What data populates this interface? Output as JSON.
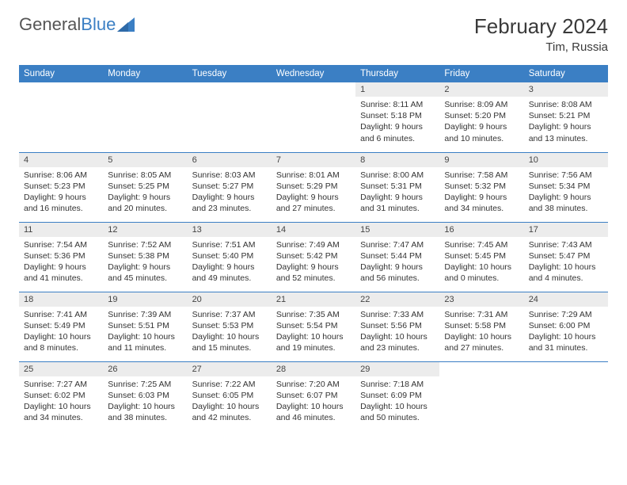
{
  "brand": {
    "part1": "General",
    "part2": "Blue"
  },
  "title": "February 2024",
  "location": "Tim, Russia",
  "colors": {
    "header_bg": "#3b7fc4",
    "header_text": "#ffffff",
    "daynum_bg": "#ececec",
    "border": "#3b7fc4",
    "text": "#333333",
    "background": "#ffffff"
  },
  "typography": {
    "title_fontsize": 26,
    "location_fontsize": 15,
    "weekday_fontsize": 11.5,
    "cell_fontsize": 10.5
  },
  "weekdays": [
    "Sunday",
    "Monday",
    "Tuesday",
    "Wednesday",
    "Thursday",
    "Friday",
    "Saturday"
  ],
  "weeks": [
    [
      null,
      null,
      null,
      null,
      {
        "n": "1",
        "sunrise": "8:11 AM",
        "sunset": "5:18 PM",
        "dl_h": "9",
        "dl_m": "6"
      },
      {
        "n": "2",
        "sunrise": "8:09 AM",
        "sunset": "5:20 PM",
        "dl_h": "9",
        "dl_m": "10"
      },
      {
        "n": "3",
        "sunrise": "8:08 AM",
        "sunset": "5:21 PM",
        "dl_h": "9",
        "dl_m": "13"
      }
    ],
    [
      {
        "n": "4",
        "sunrise": "8:06 AM",
        "sunset": "5:23 PM",
        "dl_h": "9",
        "dl_m": "16"
      },
      {
        "n": "5",
        "sunrise": "8:05 AM",
        "sunset": "5:25 PM",
        "dl_h": "9",
        "dl_m": "20"
      },
      {
        "n": "6",
        "sunrise": "8:03 AM",
        "sunset": "5:27 PM",
        "dl_h": "9",
        "dl_m": "23"
      },
      {
        "n": "7",
        "sunrise": "8:01 AM",
        "sunset": "5:29 PM",
        "dl_h": "9",
        "dl_m": "27"
      },
      {
        "n": "8",
        "sunrise": "8:00 AM",
        "sunset": "5:31 PM",
        "dl_h": "9",
        "dl_m": "31"
      },
      {
        "n": "9",
        "sunrise": "7:58 AM",
        "sunset": "5:32 PM",
        "dl_h": "9",
        "dl_m": "34"
      },
      {
        "n": "10",
        "sunrise": "7:56 AM",
        "sunset": "5:34 PM",
        "dl_h": "9",
        "dl_m": "38"
      }
    ],
    [
      {
        "n": "11",
        "sunrise": "7:54 AM",
        "sunset": "5:36 PM",
        "dl_h": "9",
        "dl_m": "41"
      },
      {
        "n": "12",
        "sunrise": "7:52 AM",
        "sunset": "5:38 PM",
        "dl_h": "9",
        "dl_m": "45"
      },
      {
        "n": "13",
        "sunrise": "7:51 AM",
        "sunset": "5:40 PM",
        "dl_h": "9",
        "dl_m": "49"
      },
      {
        "n": "14",
        "sunrise": "7:49 AM",
        "sunset": "5:42 PM",
        "dl_h": "9",
        "dl_m": "52"
      },
      {
        "n": "15",
        "sunrise": "7:47 AM",
        "sunset": "5:44 PM",
        "dl_h": "9",
        "dl_m": "56"
      },
      {
        "n": "16",
        "sunrise": "7:45 AM",
        "sunset": "5:45 PM",
        "dl_h": "10",
        "dl_m": "0"
      },
      {
        "n": "17",
        "sunrise": "7:43 AM",
        "sunset": "5:47 PM",
        "dl_h": "10",
        "dl_m": "4"
      }
    ],
    [
      {
        "n": "18",
        "sunrise": "7:41 AM",
        "sunset": "5:49 PM",
        "dl_h": "10",
        "dl_m": "8"
      },
      {
        "n": "19",
        "sunrise": "7:39 AM",
        "sunset": "5:51 PM",
        "dl_h": "10",
        "dl_m": "11"
      },
      {
        "n": "20",
        "sunrise": "7:37 AM",
        "sunset": "5:53 PM",
        "dl_h": "10",
        "dl_m": "15"
      },
      {
        "n": "21",
        "sunrise": "7:35 AM",
        "sunset": "5:54 PM",
        "dl_h": "10",
        "dl_m": "19"
      },
      {
        "n": "22",
        "sunrise": "7:33 AM",
        "sunset": "5:56 PM",
        "dl_h": "10",
        "dl_m": "23"
      },
      {
        "n": "23",
        "sunrise": "7:31 AM",
        "sunset": "5:58 PM",
        "dl_h": "10",
        "dl_m": "27"
      },
      {
        "n": "24",
        "sunrise": "7:29 AM",
        "sunset": "6:00 PM",
        "dl_h": "10",
        "dl_m": "31"
      }
    ],
    [
      {
        "n": "25",
        "sunrise": "7:27 AM",
        "sunset": "6:02 PM",
        "dl_h": "10",
        "dl_m": "34"
      },
      {
        "n": "26",
        "sunrise": "7:25 AM",
        "sunset": "6:03 PM",
        "dl_h": "10",
        "dl_m": "38"
      },
      {
        "n": "27",
        "sunrise": "7:22 AM",
        "sunset": "6:05 PM",
        "dl_h": "10",
        "dl_m": "42"
      },
      {
        "n": "28",
        "sunrise": "7:20 AM",
        "sunset": "6:07 PM",
        "dl_h": "10",
        "dl_m": "46"
      },
      {
        "n": "29",
        "sunrise": "7:18 AM",
        "sunset": "6:09 PM",
        "dl_h": "10",
        "dl_m": "50"
      },
      null,
      null
    ]
  ]
}
